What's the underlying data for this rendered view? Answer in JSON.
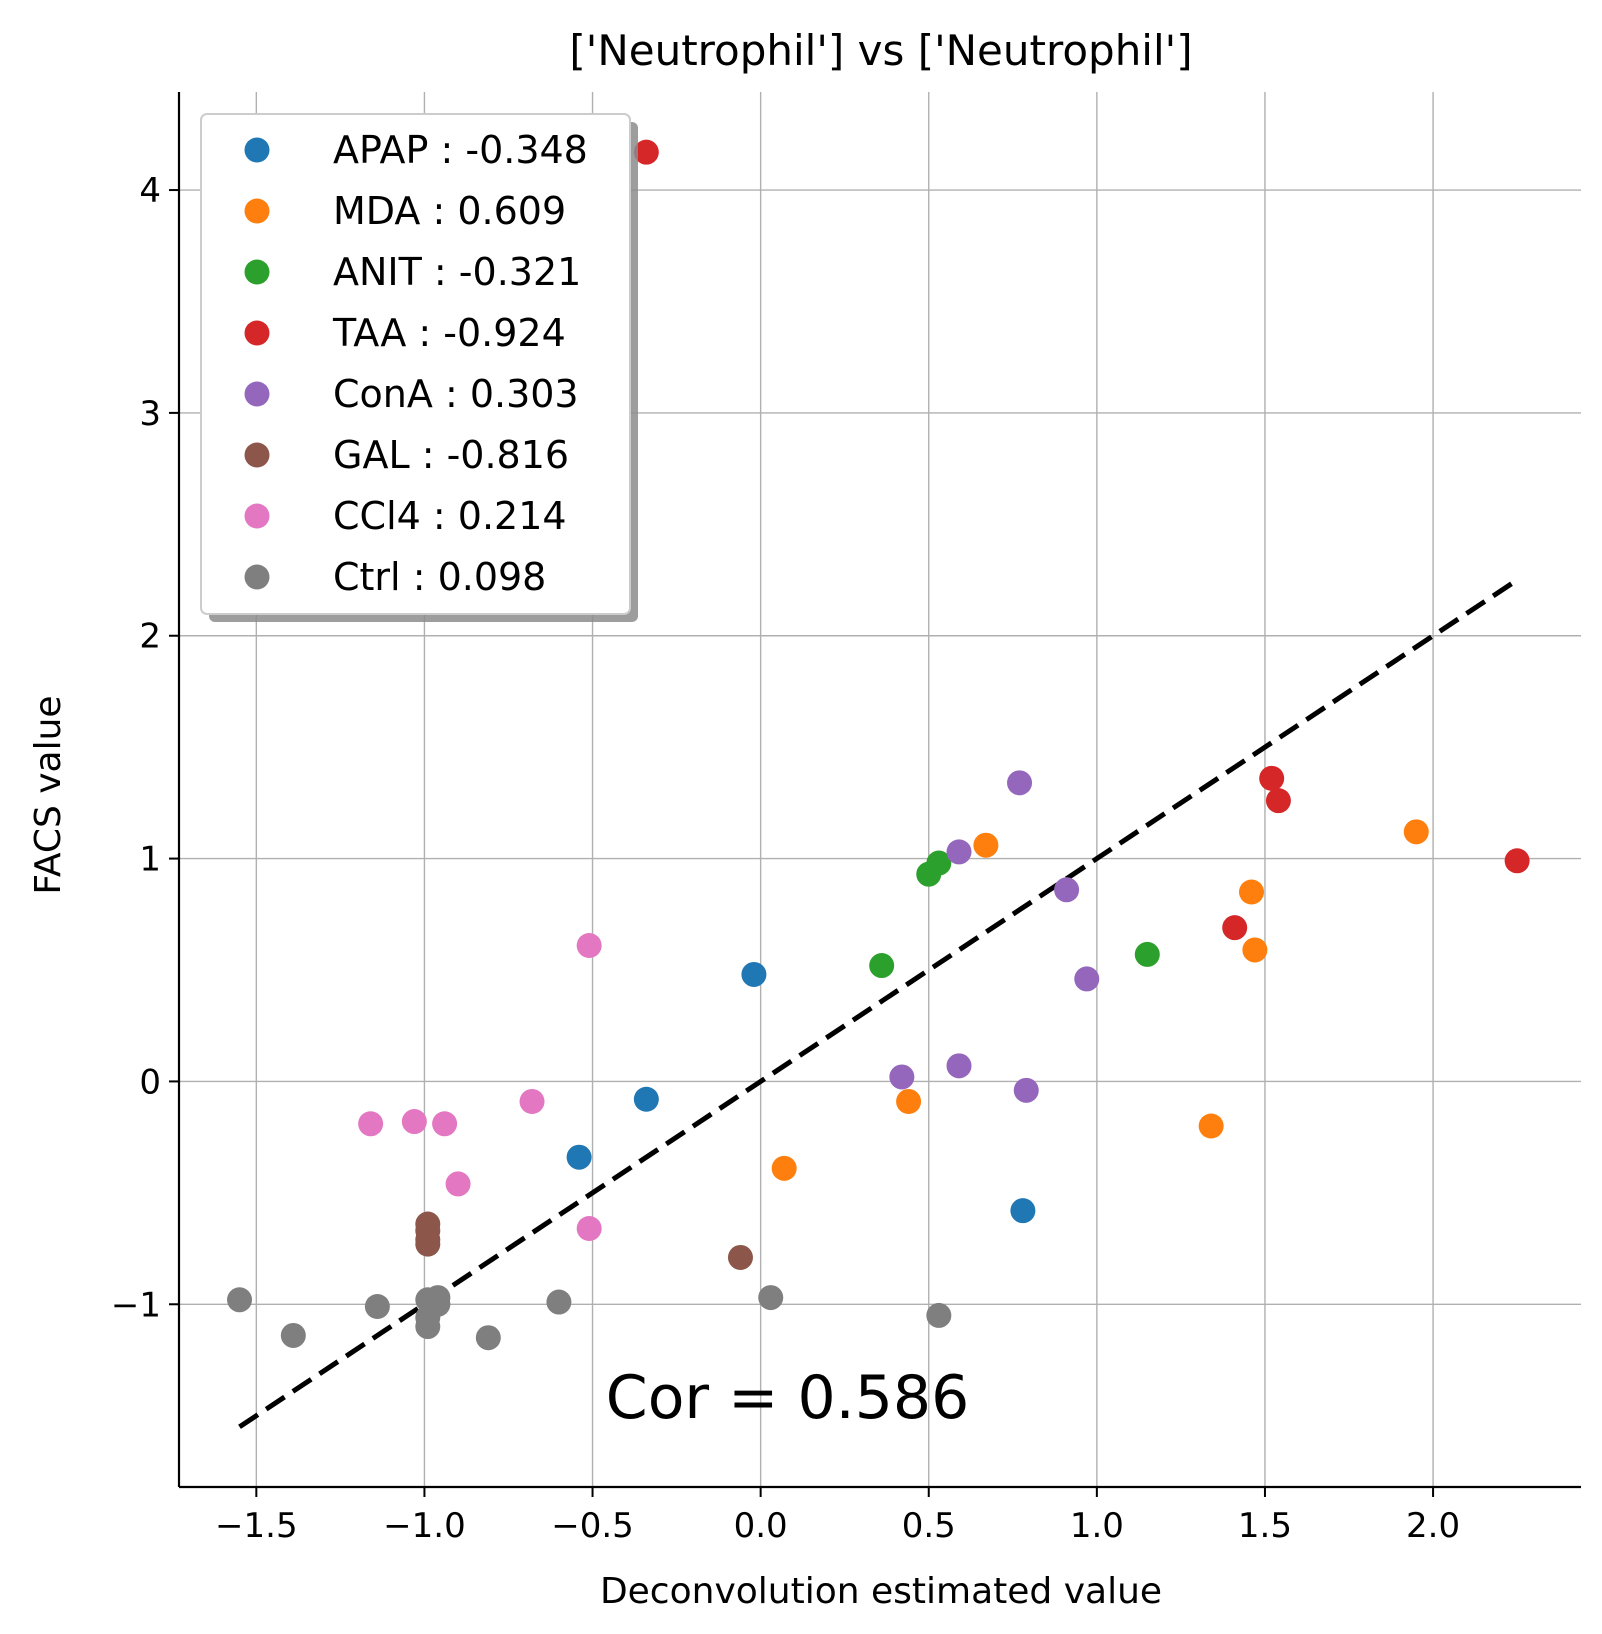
{
  "chart_data": {
    "type": "scatter",
    "title": "['Neutrophil'] vs ['Neutrophil']",
    "xlabel": "Deconvolution estimated value",
    "ylabel": "FACS value",
    "xlim": [
      -1.73,
      2.44
    ],
    "ylim": [
      -1.82,
      4.44
    ],
    "xticks": [
      -1.5,
      -1.0,
      -0.5,
      0.0,
      0.5,
      1.0,
      1.5,
      2.0
    ],
    "xtick_labels": [
      "−1.5",
      "−1.0",
      "−0.5",
      "0.0",
      "0.5",
      "1.0",
      "1.5",
      "2.0"
    ],
    "yticks": [
      -1,
      0,
      1,
      2,
      3,
      4
    ],
    "ytick_labels": [
      "−1",
      "0",
      "1",
      "2",
      "3",
      "4"
    ],
    "grid": true,
    "legend_position": "top-left",
    "reference_line": {
      "style": "dashed",
      "color": "#000000",
      "x": [
        -1.55,
        2.25
      ],
      "y": [
        -1.55,
        2.25
      ]
    },
    "annotation": "Cor = 0.586",
    "annotation_position": {
      "x": 0.08,
      "y": -1.42
    },
    "series": [
      {
        "name": "APAP : -0.348",
        "color": "#1f77b4",
        "points": [
          [
            -0.02,
            0.48
          ],
          [
            -0.34,
            -0.08
          ],
          [
            -0.54,
            -0.34
          ],
          [
            0.78,
            -0.58
          ]
        ]
      },
      {
        "name": "MDA : 0.609",
        "color": "#ff7f0e",
        "points": [
          [
            0.67,
            1.06
          ],
          [
            1.95,
            1.12
          ],
          [
            1.46,
            0.85
          ],
          [
            1.47,
            0.59
          ],
          [
            0.44,
            -0.09
          ],
          [
            0.07,
            -0.39
          ],
          [
            1.34,
            -0.2
          ]
        ]
      },
      {
        "name": "ANIT : -0.321",
        "color": "#2ca02c",
        "points": [
          [
            0.5,
            0.93
          ],
          [
            0.53,
            0.98
          ],
          [
            0.36,
            0.52
          ],
          [
            1.15,
            0.57
          ]
        ]
      },
      {
        "name": "TAA : -0.924",
        "color": "#d62728",
        "points": [
          [
            -0.34,
            4.17
          ],
          [
            1.52,
            1.36
          ],
          [
            1.54,
            1.26
          ],
          [
            2.25,
            0.99
          ],
          [
            1.41,
            0.69
          ]
        ]
      },
      {
        "name": "ConA : 0.303",
        "color": "#9467bd",
        "points": [
          [
            0.77,
            1.34
          ],
          [
            0.59,
            1.03
          ],
          [
            0.91,
            0.86
          ],
          [
            0.97,
            0.46
          ],
          [
            0.42,
            0.02
          ],
          [
            0.59,
            0.07
          ],
          [
            0.79,
            -0.04
          ]
        ]
      },
      {
        "name": "GAL : -0.816",
        "color": "#8c564b",
        "points": [
          [
            -0.99,
            -0.64
          ],
          [
            -0.99,
            -0.67
          ],
          [
            -0.99,
            -0.71
          ],
          [
            -0.99,
            -0.73
          ],
          [
            -0.06,
            -0.79
          ]
        ]
      },
      {
        "name": "CCl4 : 0.214",
        "color": "#e377c2",
        "points": [
          [
            -0.51,
            0.61
          ],
          [
            -0.68,
            -0.09
          ],
          [
            -1.16,
            -0.19
          ],
          [
            -1.03,
            -0.18
          ],
          [
            -0.94,
            -0.19
          ],
          [
            -0.9,
            -0.46
          ],
          [
            -0.51,
            -0.66
          ]
        ]
      },
      {
        "name": "Ctrl : 0.098",
        "color": "#7f7f7f",
        "points": [
          [
            -1.55,
            -0.98
          ],
          [
            -1.39,
            -1.14
          ],
          [
            -1.14,
            -1.01
          ],
          [
            -0.99,
            -0.98
          ],
          [
            -0.96,
            -0.97
          ],
          [
            -0.96,
            -1.0
          ],
          [
            -0.99,
            -1.06
          ],
          [
            -0.99,
            -1.1
          ],
          [
            -0.81,
            -1.15
          ],
          [
            -0.6,
            -0.99
          ],
          [
            0.03,
            -0.97
          ],
          [
            0.53,
            -1.05
          ]
        ]
      }
    ]
  }
}
